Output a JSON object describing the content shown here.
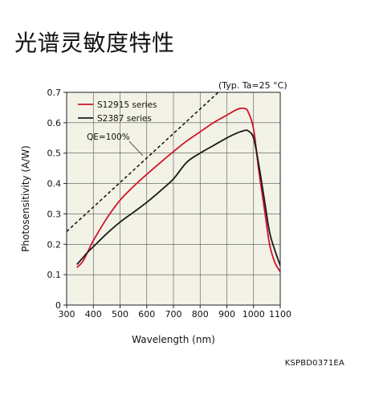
{
  "page": {
    "title": "光谱灵敏度特性",
    "figure_code": "KSPBD0371EA"
  },
  "chart_data": {
    "type": "line",
    "title": "",
    "note": "(Typ. Ta=25 °C)",
    "xlabel": "Wavelength (nm)",
    "ylabel": "Photosensitivity (A/W)",
    "xlim": [
      300,
      1100
    ],
    "ylim": [
      0,
      0.7
    ],
    "xticks": [
      300,
      400,
      500,
      600,
      700,
      800,
      900,
      1000,
      1100
    ],
    "yticks": [
      0,
      0.1,
      0.2,
      0.3,
      0.4,
      0.5,
      0.6,
      0.7
    ],
    "grid": true,
    "legend_position": "top-left",
    "series": [
      {
        "name": "S12915 series",
        "color": "#d0142c",
        "dash": "solid",
        "x": [
          340,
          360,
          380,
          400,
          450,
          500,
          550,
          600,
          650,
          700,
          750,
          800,
          850,
          900,
          930,
          950,
          970,
          980,
          1000,
          1020,
          1040,
          1060,
          1080,
          1100
        ],
        "y": [
          0.125,
          0.143,
          0.177,
          0.212,
          0.285,
          0.345,
          0.39,
          0.43,
          0.468,
          0.505,
          0.54,
          0.57,
          0.6,
          0.625,
          0.64,
          0.647,
          0.646,
          0.635,
          0.58,
          0.44,
          0.32,
          0.2,
          0.14,
          0.11
        ]
      },
      {
        "name": "S2387 series",
        "color": "#1a1a1a",
        "dash": "solid",
        "x": [
          340,
          360,
          380,
          400,
          450,
          500,
          550,
          600,
          650,
          700,
          750,
          800,
          850,
          900,
          930,
          950,
          970,
          980,
          1000,
          1020,
          1040,
          1060,
          1080,
          1100
        ],
        "y": [
          0.135,
          0.155,
          0.175,
          0.192,
          0.235,
          0.273,
          0.305,
          0.338,
          0.375,
          0.415,
          0.47,
          0.5,
          0.525,
          0.55,
          0.563,
          0.57,
          0.575,
          0.573,
          0.55,
          0.46,
          0.35,
          0.24,
          0.18,
          0.13
        ]
      },
      {
        "name": "QE=100%",
        "color": "#1a1a1a",
        "dash": "dashed",
        "x": [
          300,
          1100
        ],
        "y": [
          0.2419,
          0.8871
        ]
      }
    ]
  }
}
